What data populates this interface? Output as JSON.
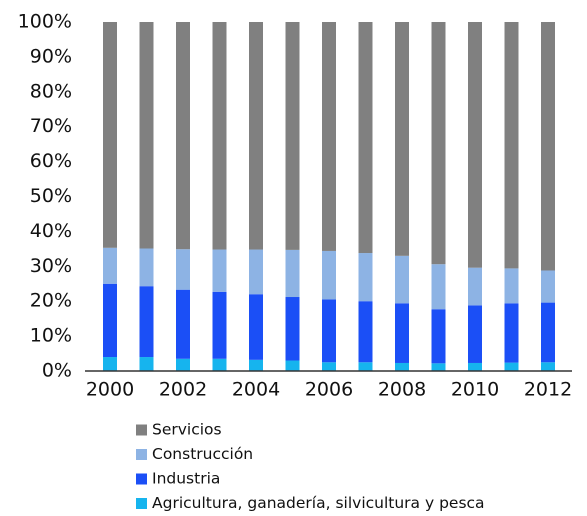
{
  "chart_data": {
    "type": "stacked_bar_100",
    "categories": [
      "2000",
      null,
      "2002",
      null,
      "2004",
      null,
      "2006",
      null,
      "2008",
      null,
      "2010",
      null,
      "2012"
    ],
    "series": [
      {
        "name": "Servicios",
        "color": "#808080",
        "values": [
          64.7,
          64.9,
          65.1,
          65.2,
          65.2,
          65.3,
          65.6,
          66.2,
          67,
          69.4,
          70.4,
          70.6,
          71.2
        ]
      },
      {
        "name": "Construcción",
        "color": "#8db3e4",
        "values": [
          10.3,
          10.8,
          11.6,
          12.1,
          12.8,
          13.5,
          13.9,
          13.8,
          13.6,
          12.9,
          10.8,
          10,
          9.2
        ]
      },
      {
        "name": "Industria",
        "color": "#1b4ff6",
        "values": [
          21,
          20.3,
          19.8,
          19.2,
          18.8,
          18.2,
          18,
          17.5,
          17.1,
          15.5,
          16.5,
          17,
          17.1
        ]
      },
      {
        "name": "Agricultura, ganadería, silvicultura y pesca",
        "color": "#16b4ee",
        "values": [
          4,
          4,
          3.5,
          3.5,
          3.2,
          3,
          2.5,
          2.5,
          2.3,
          2.2,
          2.3,
          2.4,
          2.5
        ]
      }
    ],
    "ylim": [
      0,
      100
    ],
    "yticks": [
      {
        "value": 0,
        "label": "0%"
      },
      {
        "value": 10,
        "label": "10%"
      },
      {
        "value": 20,
        "label": "20%"
      },
      {
        "value": 30,
        "label": "30%"
      },
      {
        "value": 40,
        "label": "40%"
      },
      {
        "value": 50,
        "label": "50%"
      },
      {
        "value": 60,
        "label": "60%"
      },
      {
        "value": 70,
        "label": "70%"
      },
      {
        "value": 80,
        "label": "80%"
      },
      {
        "value": 90,
        "label": "90%"
      },
      {
        "value": 100,
        "label": "100%"
      }
    ],
    "grid": false,
    "legend": "bottom"
  }
}
